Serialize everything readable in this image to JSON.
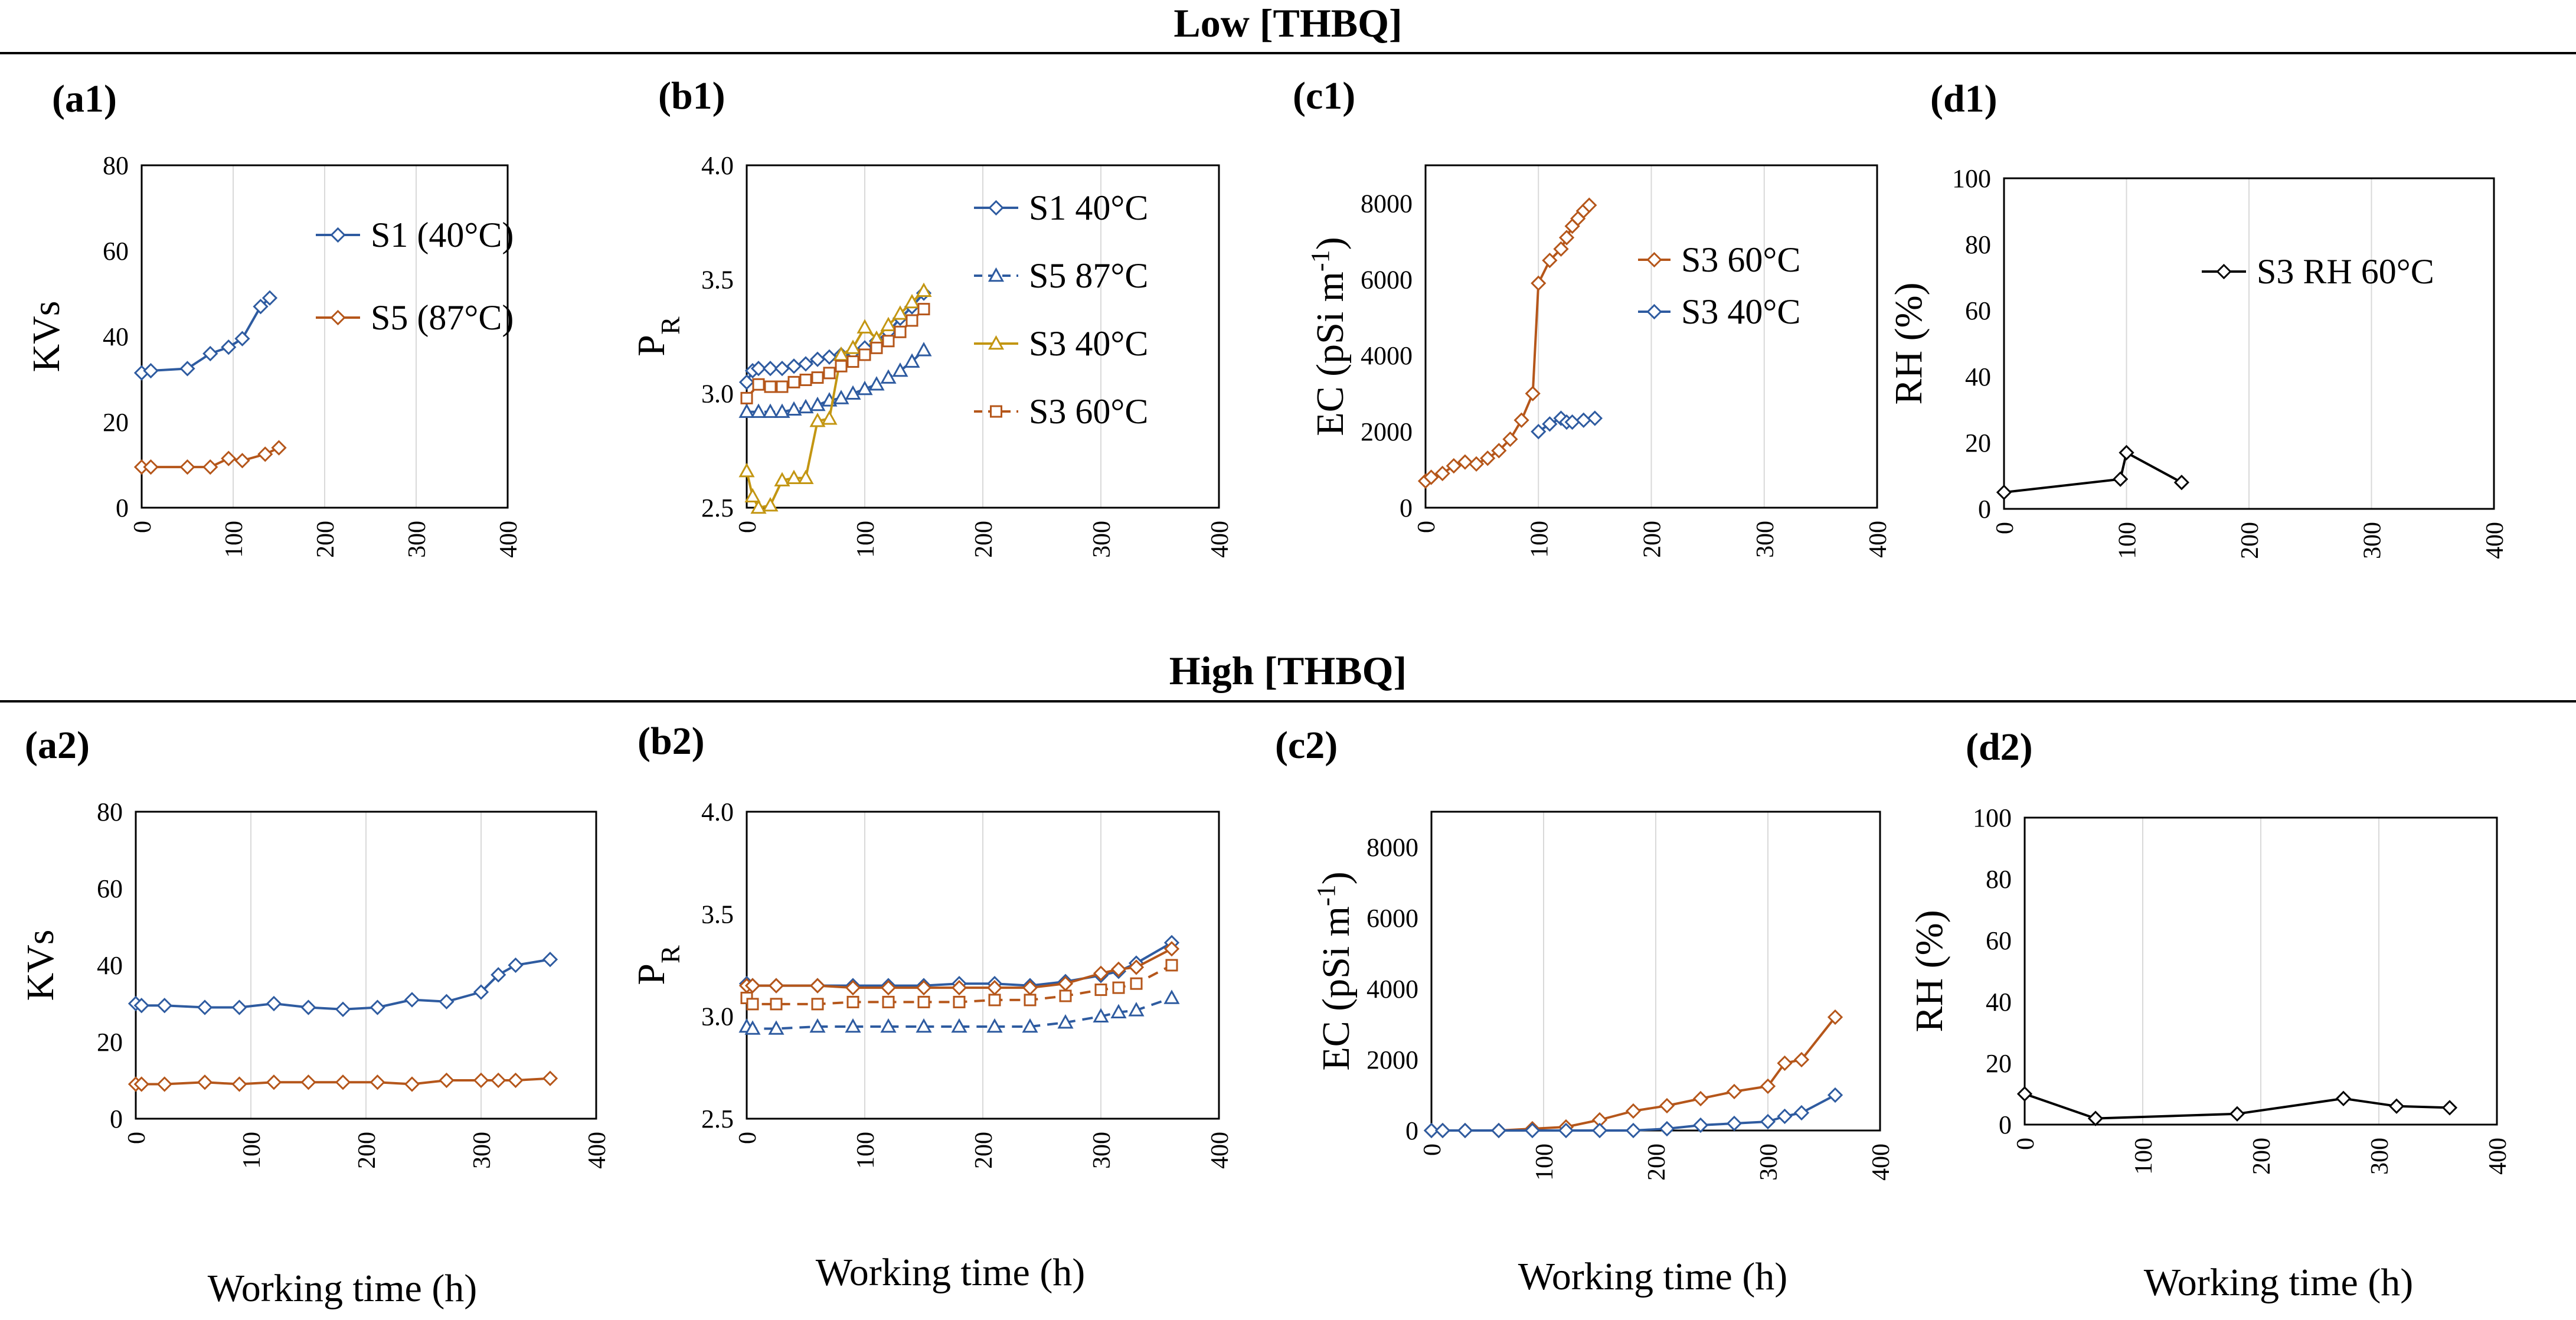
{
  "figure": {
    "header_low": "Low [THBQ]",
    "header_high": "High [THBQ]",
    "xlabel": "Working time (h)"
  },
  "chart_data": [
    {
      "id": "a1",
      "panel_label": "(a1)",
      "type": "line",
      "ylabel": "KVs",
      "ylim": [
        0,
        80
      ],
      "yticks": [
        0,
        20,
        40,
        60,
        80
      ],
      "ydec": 0,
      "xlim": [
        0,
        400
      ],
      "xticks": [
        0,
        100,
        200,
        300,
        400
      ],
      "legend": "right",
      "series": [
        {
          "name": "S1 (40°C)",
          "color": "#2e5ba0",
          "marker": "diamond",
          "dash": false,
          "x": [
            0,
            10,
            50,
            75,
            95,
            110,
            130,
            140
          ],
          "y": [
            31.5,
            32,
            32.5,
            36,
            37.5,
            39.5,
            47,
            49
          ]
        },
        {
          "name": "S5 (87°C)",
          "color": "#b5561a",
          "marker": "diamond",
          "dash": false,
          "x": [
            0,
            10,
            50,
            75,
            95,
            110,
            135,
            150
          ],
          "y": [
            9.5,
            9.5,
            9.5,
            9.5,
            11.5,
            11,
            12.5,
            14
          ]
        }
      ]
    },
    {
      "id": "b1",
      "panel_label": "(b1)",
      "type": "line",
      "ylabel": "P",
      "ylabel_sub": "R",
      "ylim": [
        2.5,
        4.0
      ],
      "yticks": [
        2.5,
        3.0,
        3.5,
        4.0
      ],
      "ydec": 1,
      "xlim": [
        0,
        400
      ],
      "xticks": [
        0,
        100,
        200,
        300,
        400
      ],
      "legend": "right",
      "series": [
        {
          "name": "S1 40°C",
          "color": "#2e5ba0",
          "marker": "diamond",
          "dash": false,
          "x": [
            0,
            5,
            10,
            20,
            30,
            40,
            50,
            60,
            70,
            80,
            90,
            100,
            110,
            120,
            130,
            140,
            150
          ],
          "y": [
            3.05,
            3.1,
            3.11,
            3.11,
            3.11,
            3.12,
            3.13,
            3.15,
            3.16,
            3.17,
            3.18,
            3.2,
            3.23,
            3.27,
            3.33,
            3.38,
            3.44
          ]
        },
        {
          "name": "S5 87°C",
          "color": "#2e5ba0",
          "marker": "triangle",
          "dash": true,
          "x": [
            0,
            10,
            20,
            30,
            40,
            50,
            60,
            70,
            80,
            90,
            100,
            110,
            120,
            130,
            140,
            150
          ],
          "y": [
            2.92,
            2.92,
            2.92,
            2.92,
            2.93,
            2.94,
            2.95,
            2.97,
            2.98,
            3.0,
            3.02,
            3.04,
            3.07,
            3.1,
            3.14,
            3.19
          ]
        },
        {
          "name": "S3 40°C",
          "color": "#c39612",
          "marker": "triangle",
          "dash": false,
          "x": [
            0,
            5,
            10,
            20,
            30,
            40,
            50,
            60,
            70,
            80,
            90,
            100,
            110,
            120,
            130,
            140,
            150
          ],
          "y": [
            2.66,
            2.55,
            2.5,
            2.51,
            2.62,
            2.63,
            2.63,
            2.88,
            2.89,
            3.17,
            3.2,
            3.29,
            3.24,
            3.3,
            3.35,
            3.4,
            3.45
          ]
        },
        {
          "name": "S3 60°C",
          "color": "#b5561a",
          "marker": "square",
          "dash": true,
          "x": [
            0,
            10,
            20,
            30,
            40,
            50,
            60,
            70,
            80,
            90,
            100,
            110,
            120,
            130,
            140,
            150
          ],
          "y": [
            2.98,
            3.04,
            3.03,
            3.03,
            3.05,
            3.06,
            3.07,
            3.09,
            3.12,
            3.14,
            3.17,
            3.2,
            3.23,
            3.27,
            3.32,
            3.37
          ]
        }
      ]
    },
    {
      "id": "c1",
      "panel_label": "(c1)",
      "type": "line",
      "ylabel": "EC (pSi m",
      "ylabel_sup": "-1",
      "ylabel_end": ")",
      "ylim": [
        0,
        9000
      ],
      "yticks": [
        0,
        2000,
        4000,
        6000,
        8000
      ],
      "ydec": 0,
      "xlim": [
        0,
        400
      ],
      "xticks": [
        0,
        100,
        200,
        300,
        400
      ],
      "legend": "right",
      "series": [
        {
          "name": "S3 60°C",
          "color": "#b5561a",
          "marker": "diamond",
          "dash": false,
          "x": [
            0,
            5,
            15,
            25,
            35,
            45,
            55,
            65,
            75,
            85,
            95,
            100,
            110,
            120,
            125,
            130,
            135,
            140,
            145
          ],
          "y": [
            700,
            800,
            900,
            1100,
            1200,
            1150,
            1300,
            1500,
            1800,
            2300,
            3000,
            5900,
            6500,
            6800,
            7100,
            7400,
            7600,
            7800,
            7950
          ]
        },
        {
          "name": "S3 40°C",
          "color": "#2e5ba0",
          "marker": "diamond",
          "dash": false,
          "x": [
            100,
            110,
            120,
            125,
            130,
            140,
            150
          ],
          "y": [
            2000,
            2200,
            2350,
            2250,
            2250,
            2300,
            2350
          ]
        }
      ]
    },
    {
      "id": "d1",
      "panel_label": "(d1)",
      "type": "line",
      "ylabel": "RH (%)",
      "ylim": [
        0,
        100
      ],
      "yticks": [
        0,
        20,
        40,
        60,
        80,
        100
      ],
      "ydec": 0,
      "xlim": [
        0,
        400
      ],
      "xticks": [
        0,
        100,
        200,
        300,
        400
      ],
      "legend": "right",
      "series": [
        {
          "name": "S3 RH 60°C",
          "color": "#000000",
          "marker": "diamond",
          "dash": false,
          "x": [
            0,
            95,
            100,
            145
          ],
          "y": [
            5,
            9,
            17,
            8
          ]
        }
      ]
    },
    {
      "id": "a2",
      "panel_label": "(a2)",
      "type": "line",
      "ylabel": "KVs",
      "ylim": [
        0,
        80
      ],
      "yticks": [
        0,
        20,
        40,
        60,
        80
      ],
      "ydec": 0,
      "xlim": [
        0,
        400
      ],
      "xticks": [
        0,
        100,
        200,
        300,
        400
      ],
      "legend": "none",
      "series": [
        {
          "name": "S1 (40°C)",
          "color": "#2e5ba0",
          "marker": "diamond",
          "dash": false,
          "x": [
            0,
            5,
            25,
            60,
            90,
            120,
            150,
            180,
            210,
            240,
            270,
            300,
            315,
            330,
            360
          ],
          "y": [
            30,
            29.5,
            29.5,
            29,
            29,
            30,
            29,
            28.5,
            29,
            31,
            30.5,
            33,
            37.5,
            40,
            41.5
          ]
        },
        {
          "name": "S5 (87°C)",
          "color": "#b5561a",
          "marker": "diamond",
          "dash": false,
          "x": [
            0,
            5,
            25,
            60,
            90,
            120,
            150,
            180,
            210,
            240,
            270,
            300,
            315,
            330,
            360
          ],
          "y": [
            9,
            9,
            9,
            9.5,
            9,
            9.5,
            9.5,
            9.5,
            9.5,
            9,
            10,
            10,
            10,
            10,
            10.5
          ]
        }
      ]
    },
    {
      "id": "b2",
      "panel_label": "(b2)",
      "type": "line",
      "ylabel": "P",
      "ylabel_sub": "R",
      "ylim": [
        2.5,
        4.0
      ],
      "yticks": [
        2.5,
        3.0,
        3.5,
        4.0
      ],
      "ydec": 1,
      "xlim": [
        0,
        400
      ],
      "xticks": [
        0,
        100,
        200,
        300,
        400
      ],
      "legend": "none",
      "series": [
        {
          "name": "S1 40°C",
          "color": "#2e5ba0",
          "marker": "diamond",
          "dash": false,
          "x": [
            0,
            5,
            25,
            60,
            90,
            120,
            150,
            180,
            210,
            240,
            270,
            300,
            315,
            330,
            360
          ],
          "y": [
            3.16,
            3.15,
            3.15,
            3.15,
            3.15,
            3.15,
            3.15,
            3.16,
            3.16,
            3.15,
            3.17,
            3.2,
            3.22,
            3.26,
            3.36
          ]
        },
        {
          "name": "S5 87°C",
          "color": "#2e5ba0",
          "marker": "triangle",
          "dash": true,
          "x": [
            0,
            5,
            25,
            60,
            90,
            120,
            150,
            180,
            210,
            240,
            270,
            300,
            315,
            330,
            360
          ],
          "y": [
            2.95,
            2.94,
            2.94,
            2.95,
            2.95,
            2.95,
            2.95,
            2.95,
            2.95,
            2.95,
            2.97,
            3.0,
            3.02,
            3.03,
            3.09
          ]
        },
        {
          "name": "S3 60°C",
          "color": "#b5561a",
          "marker": "diamond",
          "dash": false,
          "x": [
            0,
            5,
            25,
            60,
            90,
            120,
            150,
            180,
            210,
            240,
            270,
            300,
            315,
            330,
            360
          ],
          "y": [
            3.15,
            3.15,
            3.15,
            3.15,
            3.14,
            3.14,
            3.14,
            3.14,
            3.14,
            3.14,
            3.16,
            3.21,
            3.23,
            3.24,
            3.33
          ]
        },
        {
          "name": "S3 60°C",
          "color": "#b5561a",
          "marker": "square",
          "dash": true,
          "x": [
            0,
            5,
            25,
            60,
            90,
            120,
            150,
            180,
            210,
            240,
            270,
            300,
            315,
            330,
            360
          ],
          "y": [
            3.09,
            3.06,
            3.06,
            3.06,
            3.07,
            3.07,
            3.07,
            3.07,
            3.08,
            3.08,
            3.1,
            3.13,
            3.14,
            3.16,
            3.25
          ]
        }
      ]
    },
    {
      "id": "c2",
      "panel_label": "(c2)",
      "type": "line",
      "ylabel": "EC (pSi m",
      "ylabel_sup": "-1",
      "ylabel_end": ")",
      "ylim": [
        0,
        9000
      ],
      "yticks": [
        0,
        2000,
        4000,
        6000,
        8000
      ],
      "ydec": 0,
      "xlim": [
        0,
        400
      ],
      "xticks": [
        0,
        100,
        200,
        300,
        400
      ],
      "legend": "none",
      "series": [
        {
          "name": "S3 60°C",
          "color": "#b5561a",
          "marker": "diamond",
          "dash": false,
          "x": [
            0,
            10,
            30,
            60,
            90,
            120,
            150,
            180,
            210,
            240,
            270,
            300,
            315,
            330,
            360
          ],
          "y": [
            0,
            0,
            0,
            0,
            50,
            100,
            300,
            550,
            700,
            900,
            1100,
            1250,
            1900,
            2000,
            3200
          ]
        },
        {
          "name": "S3 40°C",
          "color": "#2e5ba0",
          "marker": "diamond",
          "dash": false,
          "x": [
            0,
            10,
            30,
            60,
            90,
            120,
            150,
            180,
            210,
            240,
            270,
            300,
            315,
            330,
            360
          ],
          "y": [
            0,
            0,
            0,
            0,
            0,
            0,
            0,
            0,
            50,
            150,
            200,
            250,
            400,
            500,
            1000
          ]
        }
      ]
    },
    {
      "id": "d2",
      "panel_label": "(d2)",
      "type": "line",
      "ylabel": "RH (%)",
      "ylim": [
        0,
        100
      ],
      "yticks": [
        0,
        20,
        40,
        60,
        80,
        100
      ],
      "ydec": 0,
      "xlim": [
        0,
        400
      ],
      "xticks": [
        0,
        100,
        200,
        300,
        400
      ],
      "legend": "none",
      "series": [
        {
          "name": "S3 RH 60°C",
          "color": "#000000",
          "marker": "diamond",
          "dash": false,
          "x": [
            0,
            60,
            180,
            270,
            315,
            360
          ],
          "y": [
            10,
            2,
            3.5,
            8.5,
            6,
            5.5
          ]
        }
      ]
    }
  ]
}
